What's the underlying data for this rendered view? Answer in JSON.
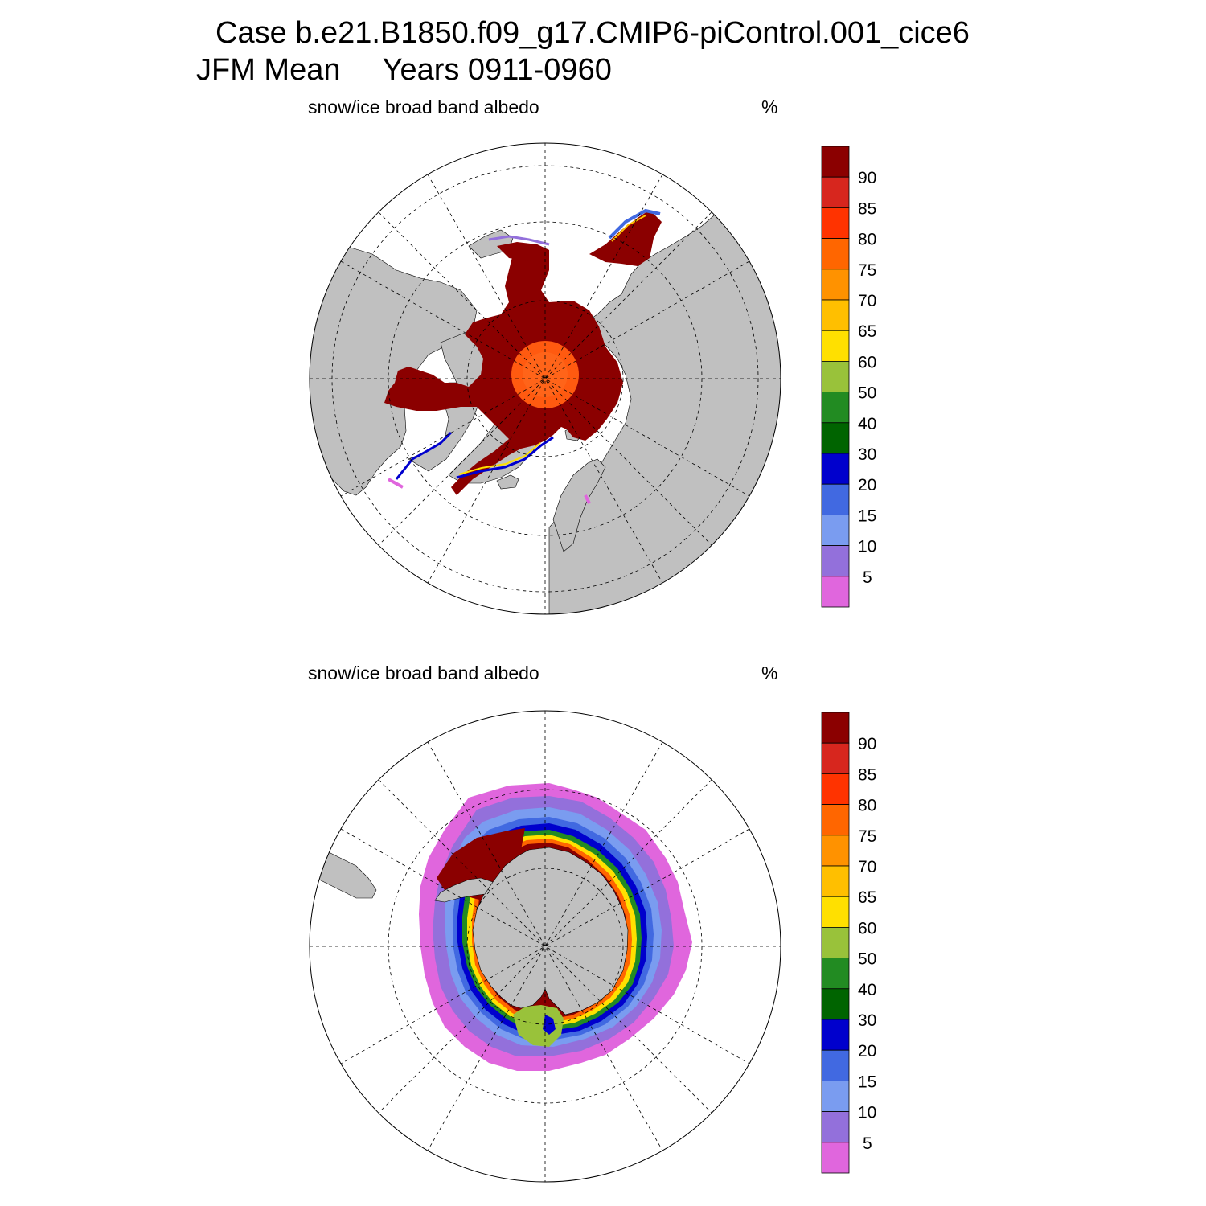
{
  "header": {
    "title_line1": "Case b.e21.B1850.f09_g17.CMIP6-piControl.001_cice6",
    "title_line2_left": "JFM Mean",
    "title_line2_right": "Years 0911-0960"
  },
  "panels": [
    {
      "id": "north",
      "variable": "snow/ice broad band albedo",
      "units": "%"
    },
    {
      "id": "south",
      "variable": "snow/ice broad band albedo",
      "units": "%"
    }
  ],
  "colorbar": {
    "labels": [
      "90",
      "85",
      "80",
      "75",
      "70",
      "65",
      "60",
      "50",
      "40",
      "30",
      "20",
      "15",
      "10",
      "5"
    ],
    "colors_top_to_bottom": [
      "#8b0000",
      "#d7261e",
      "#ff3300",
      "#ff6600",
      "#ff9200",
      "#ffbf00",
      "#ffe000",
      "#99c23a",
      "#228b22",
      "#006400",
      "#0000cd",
      "#4169e1",
      "#7a9cf0",
      "#9370db",
      "#e066dd"
    ]
  },
  "style": {
    "land_color": "#c0c0c0",
    "ocean_color": "#ffffff"
  }
}
